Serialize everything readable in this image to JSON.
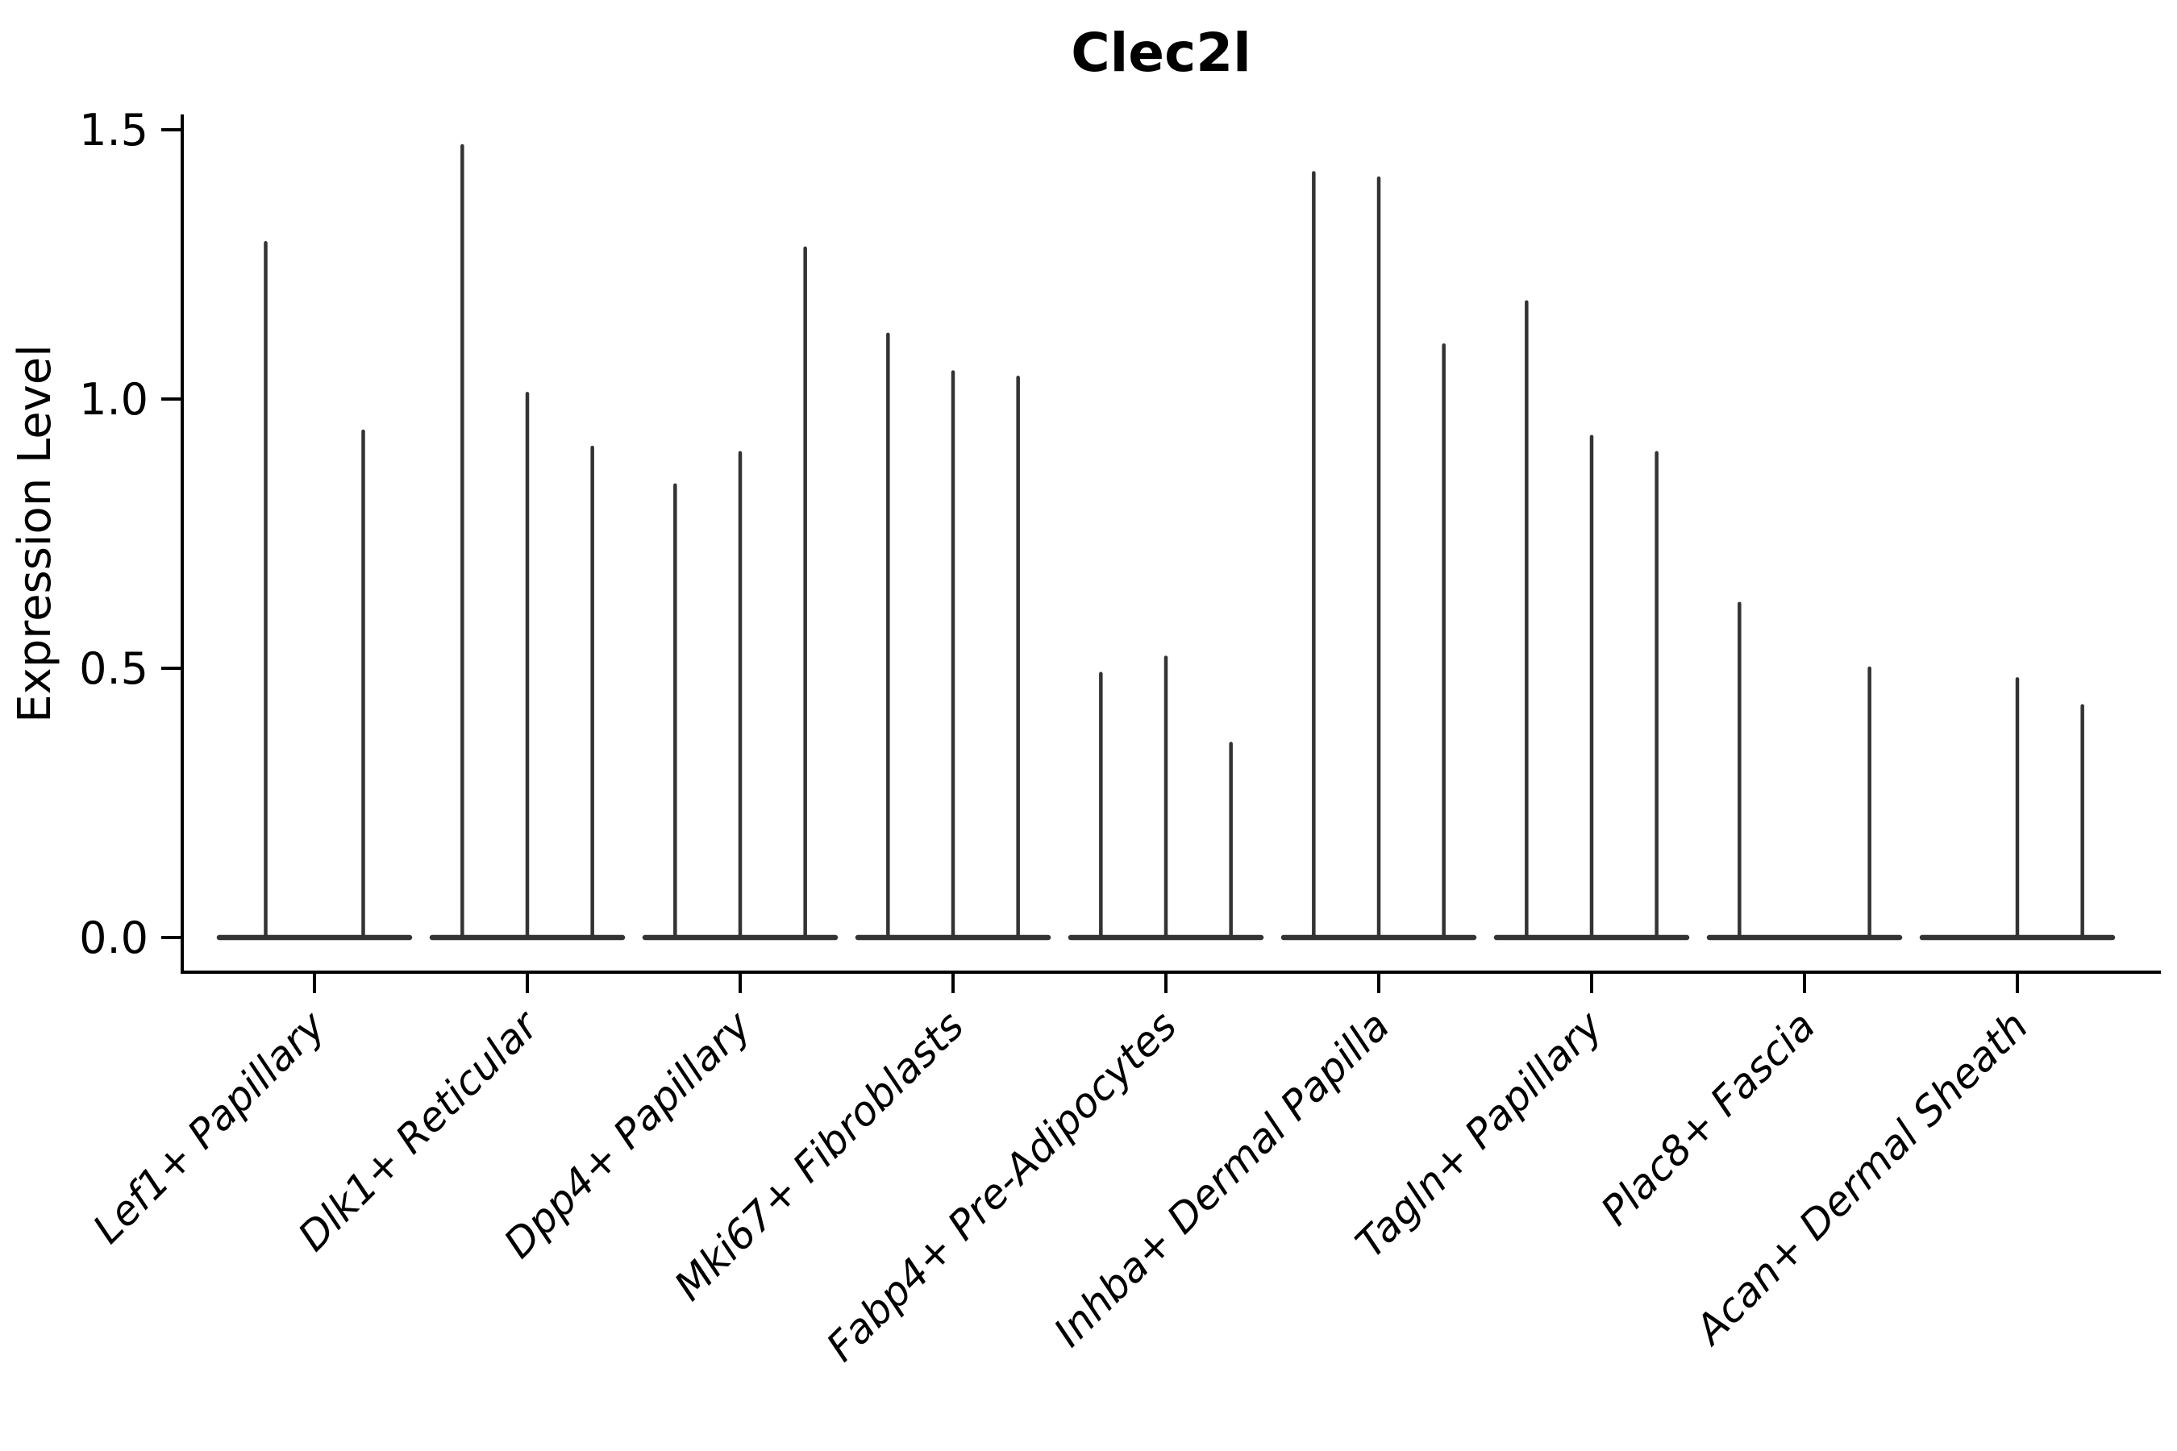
{
  "chart_data": {
    "type": "violin",
    "title": "Clec2l",
    "ylabel": "Expression Level",
    "xlabel": "",
    "ylim": [
      0,
      1.57
    ],
    "ytick_labels": [
      "0.0",
      "0.5",
      "1.0",
      "1.5"
    ],
    "ytick_values": [
      0.0,
      0.5,
      1.0,
      1.5
    ],
    "grid": false,
    "legend": "none",
    "categories": [
      "Lef1+ Papillary",
      "Dlk1+ Reticular",
      "Dpp4+ Papillary",
      "Mki67+ Fibroblasts",
      "Fabp4+ Pre-Adipocytes",
      "Inhba+ Dermal Papilla",
      "Tagln+ Papillary",
      "Plac8+ Fascia",
      "Acan+ Dermal Sheath"
    ],
    "groups": [
      {
        "category": "Lef1+ Papillary",
        "expression_peaks": [
          1.29,
          0.94
        ]
      },
      {
        "category": "Dlk1+ Reticular",
        "expression_peaks": [
          1.47,
          1.01,
          0.91
        ]
      },
      {
        "category": "Dpp4+ Papillary",
        "expression_peaks": [
          0.84,
          0.9,
          1.28
        ]
      },
      {
        "category": "Mki67+ Fibroblasts",
        "expression_peaks": [
          1.12,
          1.05,
          1.04
        ]
      },
      {
        "category": "Fabp4+ Pre-Adipocytes",
        "expression_peaks": [
          0.49,
          0.52,
          0.36
        ]
      },
      {
        "category": "Inhba+ Dermal Papilla",
        "expression_peaks": [
          1.42,
          1.41,
          1.1
        ]
      },
      {
        "category": "Tagln+ Papillary",
        "expression_peaks": [
          1.18,
          0.93,
          0.9
        ]
      },
      {
        "category": "Plac8+ Fascia",
        "expression_peaks": [
          0.62,
          0.0,
          0.5
        ]
      },
      {
        "category": "Acan+ Dermal Sheath",
        "expression_peaks": [
          0.0,
          0.48,
          0.43
        ]
      }
    ],
    "style": {
      "violin_color": "#333333",
      "axis_color": "#000000",
      "background": "#ffffff",
      "xlabels_rotation_deg": 45,
      "xlabels_italic": true,
      "title_bold": true
    }
  }
}
